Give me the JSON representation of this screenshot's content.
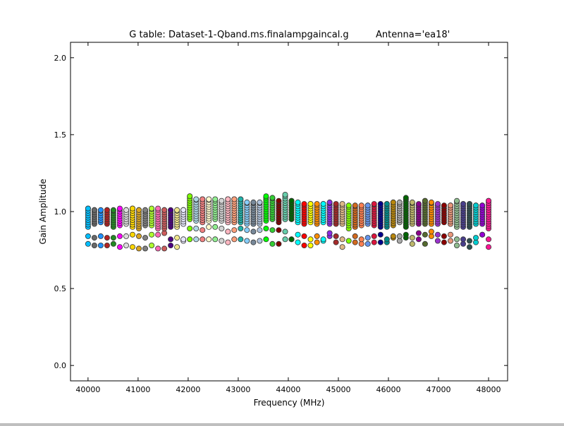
{
  "chart_data": {
    "type": "scatter",
    "title": "G table: Dataset-1-Qband.ms.finalampgaincal.g",
    "subtitle": "Antenna='ea18'",
    "xlabel": "Frequency (MHz)",
    "ylabel": "Gain Amplitude",
    "xlim": [
      39650,
      48380
    ],
    "ylim": [
      -0.1,
      2.1
    ],
    "xticks": [
      "40000",
      "41000",
      "42000",
      "43000",
      "44000",
      "45000",
      "46000",
      "47000",
      "48000"
    ],
    "yticks": [
      "0.0",
      "0.5",
      "1.0",
      "1.5",
      "2.0"
    ],
    "grid": false,
    "columns_format": [
      "frequency_mhz",
      "color",
      "upper_min",
      "upper_max",
      "lower_1",
      "lower_2"
    ],
    "columns": [
      [
        40000,
        "#00bfff",
        0.9,
        1.02,
        0.84,
        0.79
      ],
      [
        40127,
        "#696969",
        0.92,
        1.01,
        0.83,
        0.78
      ],
      [
        40254,
        "#1e90ff",
        0.93,
        1.01,
        0.84,
        0.78
      ],
      [
        40381,
        "#b22222",
        0.92,
        1.01,
        0.83,
        0.78
      ],
      [
        40508,
        "#228b22",
        0.9,
        1.01,
        0.83,
        0.79
      ],
      [
        40635,
        "#ff00ff",
        0.91,
        1.02,
        0.84,
        0.77
      ],
      [
        40762,
        "#dcdcdc",
        0.92,
        1.01,
        0.84,
        0.78
      ],
      [
        40889,
        "#ffd700",
        0.9,
        1.02,
        0.85,
        0.77
      ],
      [
        41016,
        "#daa520",
        0.89,
        1.01,
        0.84,
        0.76
      ],
      [
        41143,
        "#808080",
        0.91,
        1.01,
        0.83,
        0.76
      ],
      [
        41270,
        "#adff2f",
        0.91,
        1.02,
        0.85,
        0.78
      ],
      [
        41397,
        "#ff69b4",
        0.89,
        1.02,
        0.85,
        0.76
      ],
      [
        41524,
        "#cd5c5c",
        0.89,
        1.01,
        0.86,
        0.76
      ],
      [
        41651,
        "#4b0082",
        0.9,
        1.01,
        0.82,
        0.78
      ],
      [
        41778,
        "#f0e68c",
        0.9,
        1.01,
        0.83,
        0.77
      ],
      [
        41905,
        "#e6e6fa",
        0.92,
        1.01,
        0.82,
        0.81
      ],
      [
        42032,
        "#7cfc00",
        0.95,
        1.1,
        0.89,
        0.82
      ],
      [
        42159,
        "#add8e6",
        0.94,
        1.08,
        0.89,
        0.82
      ],
      [
        42286,
        "#f08080",
        0.93,
        1.08,
        0.88,
        0.82
      ],
      [
        42413,
        "#fffacd",
        0.94,
        1.08,
        0.9,
        0.82
      ],
      [
        42540,
        "#90ee90",
        0.95,
        1.08,
        0.9,
        0.82
      ],
      [
        42667,
        "#d3d3d3",
        0.94,
        1.07,
        0.89,
        0.81
      ],
      [
        42794,
        "#ffb6c1",
        0.93,
        1.08,
        0.87,
        0.8
      ],
      [
        42921,
        "#ffa07a",
        0.93,
        1.08,
        0.88,
        0.82
      ],
      [
        43048,
        "#20b2aa",
        0.93,
        1.08,
        0.89,
        0.82
      ],
      [
        43175,
        "#87cefa",
        0.92,
        1.06,
        0.88,
        0.81
      ],
      [
        43302,
        "#778899",
        0.92,
        1.06,
        0.87,
        0.8
      ],
      [
        43429,
        "#b0c4de",
        0.92,
        1.06,
        0.88,
        0.81
      ],
      [
        43556,
        "#00ff00",
        0.94,
        1.1,
        0.89,
        0.82
      ],
      [
        43683,
        "#32cd32",
        0.95,
        1.09,
        0.88,
        0.79
      ],
      [
        43810,
        "#800000",
        0.93,
        1.07,
        0.88,
        0.79
      ],
      [
        43937,
        "#66cdaa",
        0.95,
        1.11,
        0.87,
        0.82
      ],
      [
        44064,
        "#006400",
        0.95,
        1.07,
        0.82,
        0.82
      ],
      [
        44191,
        "#00ffff",
        0.93,
        1.06,
        0.85,
        0.8
      ],
      [
        44318,
        "#ff0000",
        0.92,
        1.05,
        0.84,
        0.78
      ],
      [
        44445,
        "#ffff00",
        0.93,
        1.05,
        0.82,
        0.78
      ],
      [
        44572,
        "#ff8c00",
        0.92,
        1.05,
        0.84,
        0.8
      ],
      [
        44699,
        "#00ffff",
        0.93,
        1.05,
        0.82,
        0.81
      ],
      [
        44826,
        "#8a2be2",
        0.92,
        1.06,
        0.86,
        0.84
      ],
      [
        44953,
        "#a52a2a",
        0.92,
        1.05,
        0.84,
        0.8
      ],
      [
        45080,
        "#deb887",
        0.92,
        1.05,
        0.82,
        0.77
      ],
      [
        45207,
        "#7fff00",
        0.91,
        1.04,
        0.89,
        0.81
      ],
      [
        45334,
        "#d2691e",
        0.9,
        1.04,
        0.84,
        0.8
      ],
      [
        45461,
        "#ff7f50",
        0.91,
        1.04,
        0.82,
        0.79
      ],
      [
        45588,
        "#6495ed",
        0.92,
        1.04,
        0.83,
        0.79
      ],
      [
        45715,
        "#dc143c",
        0.91,
        1.05,
        0.84,
        0.8
      ],
      [
        45842,
        "#00008b",
        0.9,
        1.05,
        0.85,
        0.8
      ],
      [
        45969,
        "#008b8b",
        0.9,
        1.05,
        0.82,
        0.8
      ],
      [
        46096,
        "#b8860b",
        0.91,
        1.06,
        0.84,
        0.83
      ],
      [
        46223,
        "#a9a9a9",
        0.93,
        1.06,
        0.84,
        0.81
      ],
      [
        46350,
        "#006400",
        0.9,
        1.09,
        0.85,
        0.83
      ],
      [
        46477,
        "#bdb76b",
        0.92,
        1.06,
        0.83,
        0.79
      ],
      [
        46604,
        "#8b008b",
        0.92,
        1.05,
        0.86,
        0.82
      ],
      [
        46731,
        "#556b2f",
        0.92,
        1.07,
        0.85,
        0.79
      ],
      [
        46858,
        "#ff8c00",
        0.92,
        1.06,
        0.87,
        0.84
      ],
      [
        46985,
        "#9932cc",
        0.92,
        1.05,
        0.85,
        0.81
      ],
      [
        47112,
        "#8b0000",
        0.93,
        1.04,
        0.84,
        0.8
      ],
      [
        47239,
        "#e9967a",
        0.92,
        1.04,
        0.85,
        0.81
      ],
      [
        47366,
        "#8fbc8f",
        0.9,
        1.07,
        0.82,
        0.78
      ],
      [
        47493,
        "#483d8b",
        0.9,
        1.05,
        0.82,
        0.79
      ],
      [
        47620,
        "#2f4f4f",
        0.9,
        1.05,
        0.81,
        0.77
      ],
      [
        47747,
        "#00ced1",
        0.92,
        1.04,
        0.83,
        0.8
      ],
      [
        47874,
        "#9400d3",
        0.92,
        1.04,
        0.85,
        0.85
      ],
      [
        48000,
        "#ff1493",
        0.89,
        1.07,
        0.82,
        0.77
      ]
    ]
  }
}
